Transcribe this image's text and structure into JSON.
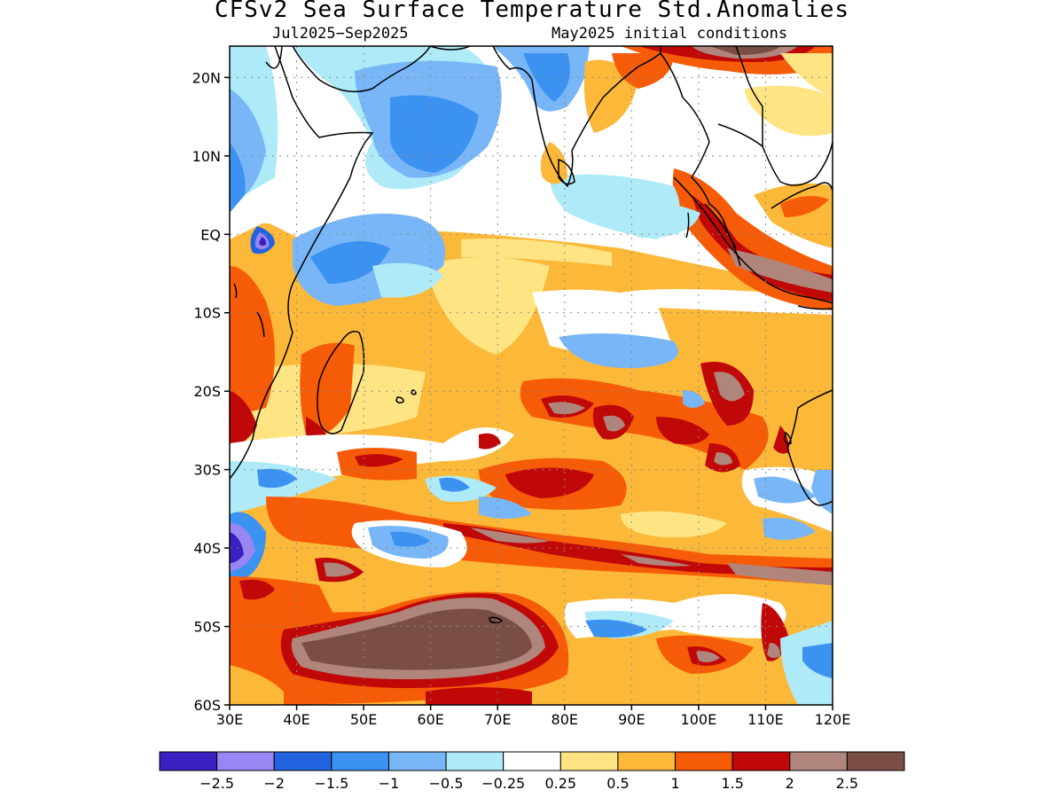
{
  "title": "CFSv2 Sea Surface Temperature Std.Anomalies",
  "subtitle_left": "Jul2025−Sep2025",
  "subtitle_right": "May2025 initial conditions",
  "map": {
    "lon_range": [
      30,
      120
    ],
    "lat_range": [
      -60,
      24
    ],
    "lat_ticks": [
      {
        "value": 20,
        "label": "20N"
      },
      {
        "value": 10,
        "label": "10N"
      },
      {
        "value": 0,
        "label": "EQ"
      },
      {
        "value": -10,
        "label": "10S"
      },
      {
        "value": -20,
        "label": "20S"
      },
      {
        "value": -30,
        "label": "30S"
      },
      {
        "value": -40,
        "label": "40S"
      },
      {
        "value": -50,
        "label": "50S"
      },
      {
        "value": -60,
        "label": "60S"
      }
    ],
    "lon_ticks": [
      {
        "value": 30,
        "label": "30E"
      },
      {
        "value": 40,
        "label": "40E"
      },
      {
        "value": 50,
        "label": "50E"
      },
      {
        "value": 60,
        "label": "60E"
      },
      {
        "value": 70,
        "label": "70E"
      },
      {
        "value": 80,
        "label": "80E"
      },
      {
        "value": 90,
        "label": "90E"
      },
      {
        "value": 100,
        "label": "100E"
      },
      {
        "value": 110,
        "label": "110E"
      },
      {
        "value": 120,
        "label": "120E"
      }
    ],
    "gridlines": "dotted"
  },
  "colorbar": {
    "colors": [
      "#3a20c0",
      "#9a86f2",
      "#2263e0",
      "#3c92f0",
      "#78b6f8",
      "#aeeaf8",
      "#ffffff",
      "#ffe484",
      "#fcb838",
      "#f65c08",
      "#c00808",
      "#b0867c",
      "#7a4e44"
    ],
    "labels": [
      "−2.5",
      "−2",
      "−1.5",
      "−1",
      "−0.5",
      "−0.25",
      "0.25",
      "0.5",
      "1",
      "1.5",
      "2",
      "2.5"
    ]
  }
}
